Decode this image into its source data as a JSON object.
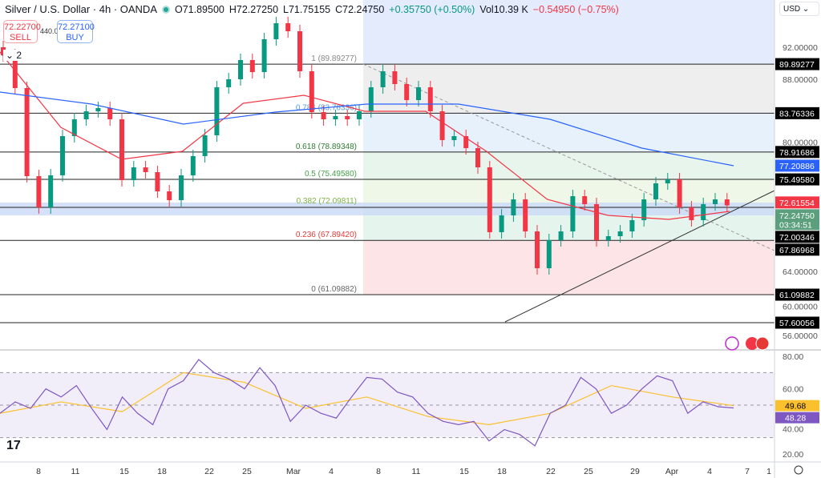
{
  "header": {
    "title": "Silver / U.S. Dollar · 4h · OANDA",
    "open": "O71.89500",
    "high": "H72.27250",
    "low": "L71.75155",
    "close": "C72.24750",
    "change": "+0.35750 (+0.50%)",
    "volume": "Vol10.39 K",
    "vol_change": "−0.54950 (−0.75%)"
  },
  "trade": {
    "sell_price": "72.22700",
    "sell_label": "SELL",
    "spread": "440.0",
    "buy_price": "72.27100",
    "buy_label": "BUY"
  },
  "legend_toggle": "2",
  "currency": "USD",
  "colors": {
    "up": "#089981",
    "down": "#f23645",
    "ma_fast": "#f23645",
    "ma_slow": "#2962ff",
    "rsi": "#7e57c2",
    "rsi_ma": "#fbc02d"
  },
  "chart_data": {
    "type": "candlestick",
    "x_ticks": [
      "8",
      "11",
      "15",
      "18",
      "22",
      "25",
      "Mar",
      "4",
      "8",
      "11",
      "15",
      "18",
      "22",
      "25",
      "29",
      "Apr",
      "4",
      "7",
      "1"
    ],
    "y_ticks": [
      92,
      88,
      80,
      64,
      60,
      56
    ],
    "ylim": [
      55.5,
      97
    ],
    "closes": [
      91,
      86.9,
      75.9,
      72,
      76,
      80.9,
      83,
      84,
      84.4,
      83,
      75.4,
      77,
      76.4,
      74,
      72.9,
      76,
      78.4,
      81,
      87,
      88,
      90.4,
      88.9,
      93,
      95,
      94,
      89,
      83.9,
      83,
      83.4,
      83,
      84,
      87,
      89,
      87.4,
      85.4,
      87,
      84,
      80.4,
      80.9,
      79.4,
      77,
      68.9,
      71,
      73,
      69,
      64.4,
      67.9,
      69,
      73.4,
      72.4,
      67.9,
      68.4,
      69,
      70.4,
      73,
      75,
      75.5,
      72,
      70.4,
      72.4,
      73,
      72.2475
    ],
    "ma_fast": [
      91.4,
      82,
      78,
      79,
      85,
      86,
      84,
      84,
      79,
      73,
      71,
      70.5,
      71.5
    ],
    "ma_slow": [
      86.4,
      84.9,
      82.4,
      83.9,
      84.9,
      84.9,
      83,
      79.4,
      77.2
    ],
    "fibonacci": [
      {
        "ratio": "1",
        "price": 89.89277,
        "label": "1 (89.89277)"
      },
      {
        "ratio": "0.786",
        "price": 83.76336,
        "label": "0.786 (83.76336)"
      },
      {
        "ratio": "0.618",
        "price": 78.89348,
        "label": "0.618 (78.89348)"
      },
      {
        "ratio": "0.5",
        "price": 75.4958,
        "label": "0.5 (75.49580)"
      },
      {
        "ratio": "0.382",
        "price": 72.09811,
        "label": "0.382 (72.09811)"
      },
      {
        "ratio": "0.236",
        "price": 67.8942,
        "label": "0.236 (67.89420)"
      },
      {
        "ratio": "0",
        "price": 61.09882,
        "label": "0 (61.09882)"
      }
    ],
    "price_labels": [
      {
        "text": "89.89277",
        "price": 89.89277,
        "bg": "#000"
      },
      {
        "text": "83.76336",
        "price": 83.76336,
        "bg": "#000"
      },
      {
        "text": "78.91686",
        "price": 78.91686,
        "bg": "#000"
      },
      {
        "text": "77.20886",
        "price": 77.20886,
        "bg": "#2962ff"
      },
      {
        "text": "75.49580",
        "price": 75.4958,
        "bg": "#000"
      },
      {
        "text": "72.61554",
        "price": 72.61554,
        "bg": "#f23645"
      },
      {
        "text": "72.24750",
        "price": 72.2475,
        "bg": "#5b9f7d",
        "sub": "03:34:51"
      },
      {
        "text": "72.00346",
        "price": 72.00346,
        "bg": "#000"
      },
      {
        "text": "67.86968",
        "price": 67.86968,
        "bg": "#000"
      },
      {
        "text": "61.09882",
        "price": 61.09882,
        "bg": "#000"
      },
      {
        "text": "57.60056",
        "price": 57.60056,
        "bg": "#000"
      }
    ],
    "rsi": {
      "values": [
        45,
        52,
        48,
        60,
        55,
        62,
        48,
        35,
        55,
        45,
        38,
        60,
        65,
        78,
        70,
        66,
        60,
        73,
        62,
        40,
        50,
        45,
        42,
        55,
        67,
        66,
        58,
        55,
        45,
        40,
        38,
        40,
        28,
        35,
        32,
        25,
        45,
        50,
        67,
        60,
        45,
        50,
        60,
        68,
        65,
        45,
        52,
        49,
        48.28
      ],
      "ma": [
        45,
        52,
        46,
        70,
        64,
        48,
        55,
        43,
        38,
        45,
        62,
        55,
        49.68
      ],
      "y_ticks": [
        80,
        60,
        40,
        20
      ],
      "bands": [
        70,
        30
      ],
      "labels": [
        {
          "text": "49.68",
          "bg": "#fbc02d"
        },
        {
          "text": "48.28",
          "bg": "#7e57c2"
        }
      ]
    }
  }
}
